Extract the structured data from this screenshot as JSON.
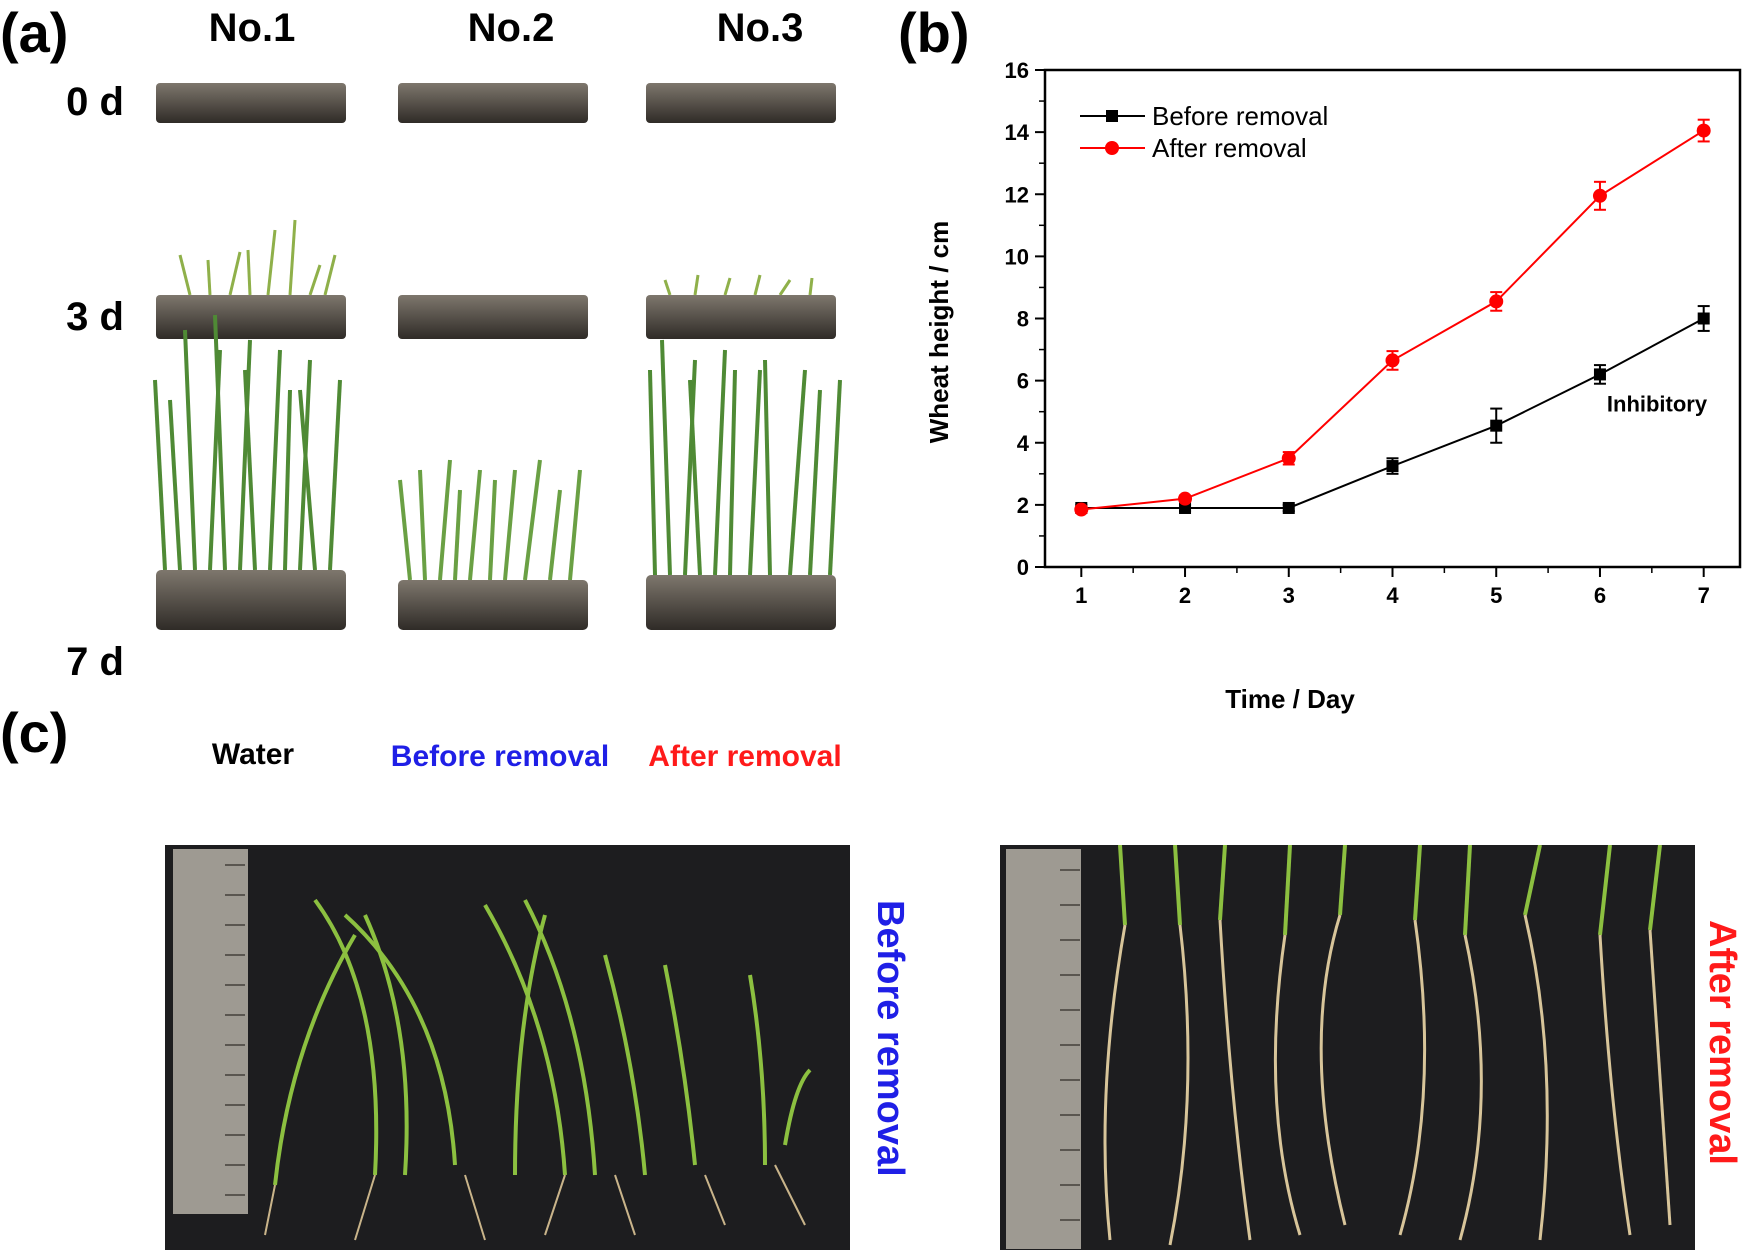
{
  "panels": {
    "a": "(a)",
    "b": "(b)",
    "c": "(c)"
  },
  "panel_a": {
    "columns": [
      "No.1",
      "No.2",
      "No.3"
    ],
    "rows": [
      "0 d",
      "3 d",
      "7 d"
    ],
    "captions": [
      "Water",
      "Before removal",
      "After removal"
    ],
    "caption_colors": [
      "#000000",
      "#1f1fe6",
      "#ff1a1a"
    ]
  },
  "panel_c": {
    "left_caption": "Before removal",
    "right_caption": "After removal",
    "left_color": "#1f1fe6",
    "right_color": "#ff1a1a"
  },
  "chart_data": {
    "type": "line",
    "xlabel": "Time / Day",
    "ylabel": "Wheat height / cm",
    "x": [
      1,
      2,
      3,
      4,
      5,
      6,
      7
    ],
    "xlim": [
      0.65,
      7.35
    ],
    "ylim": [
      0,
      16
    ],
    "yticks": [
      0,
      2,
      4,
      6,
      8,
      10,
      12,
      14,
      16
    ],
    "legend_position": "top-left",
    "series": [
      {
        "name": "Before removal",
        "color": "#000000",
        "marker": "square",
        "values": [
          1.9,
          1.9,
          1.9,
          3.25,
          4.55,
          6.2,
          8.0
        ],
        "errors": [
          0.1,
          0.1,
          0.1,
          0.25,
          0.55,
          0.3,
          0.4
        ]
      },
      {
        "name": "After removal",
        "color": "#ff0000",
        "marker": "circle",
        "values": [
          1.85,
          2.2,
          3.5,
          6.65,
          8.55,
          11.95,
          14.05
        ],
        "errors": [
          0.1,
          0.1,
          0.2,
          0.3,
          0.3,
          0.45,
          0.35
        ]
      }
    ],
    "annotations": [
      {
        "text": "Inhibitory",
        "x": 6.55,
        "y": 5.0
      }
    ]
  }
}
